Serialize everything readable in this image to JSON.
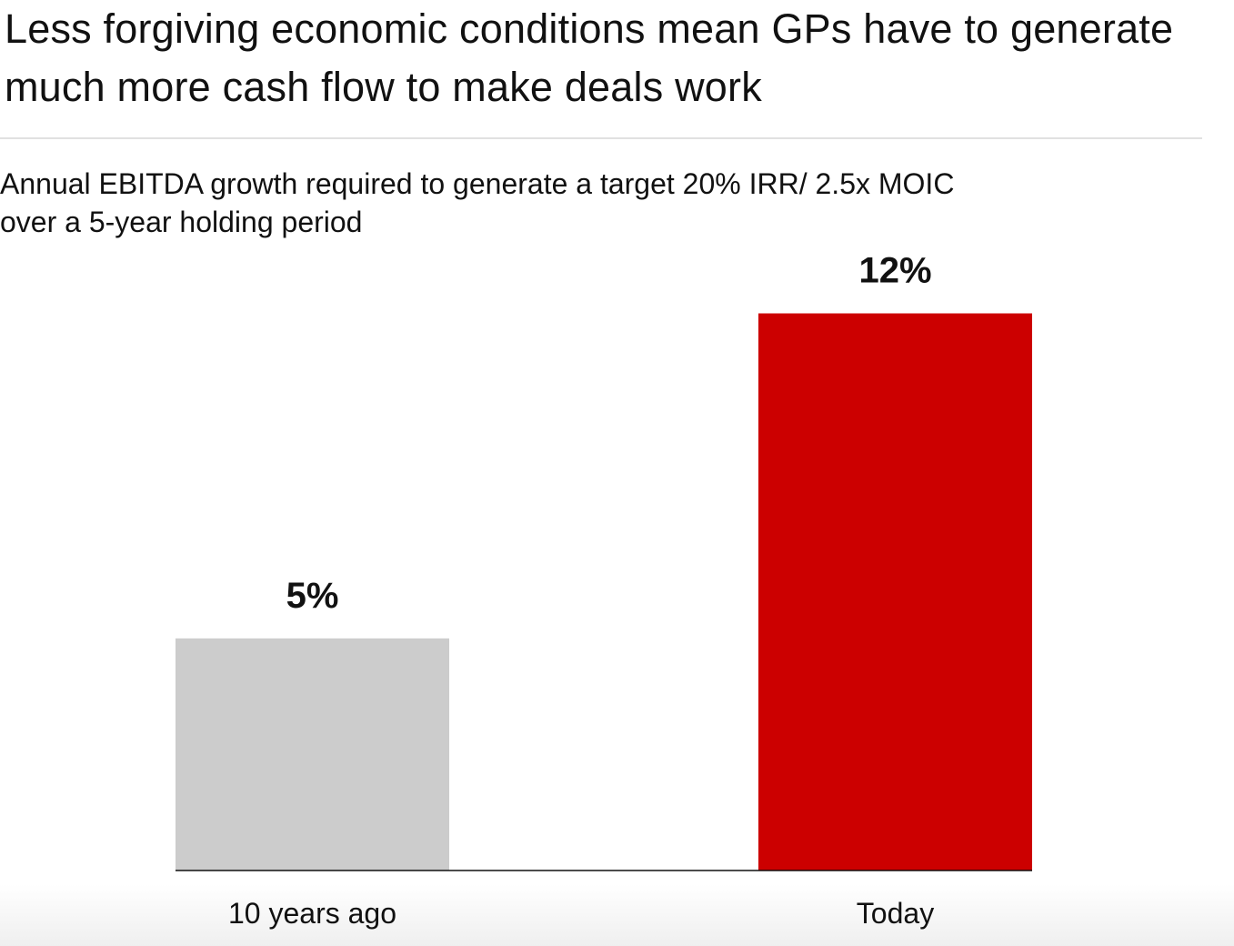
{
  "header": {
    "title": "Less forgiving economic conditions mean GPs have to generate much more cash flow to make deals work"
  },
  "chart_data": {
    "type": "bar",
    "title": "Annual EBITDA growth required to generate a target 20% IRR/ 2.5x MOIC over a 5-year holding period",
    "categories": [
      "10 years ago",
      "Today"
    ],
    "values": [
      5,
      12
    ],
    "value_labels": [
      "5%",
      "12%"
    ],
    "colors": [
      "#cccccc",
      "#cc0000"
    ],
    "ylim": [
      0,
      12.5
    ],
    "xlabel": "",
    "ylabel": "",
    "grid": false,
    "legend": "none"
  }
}
